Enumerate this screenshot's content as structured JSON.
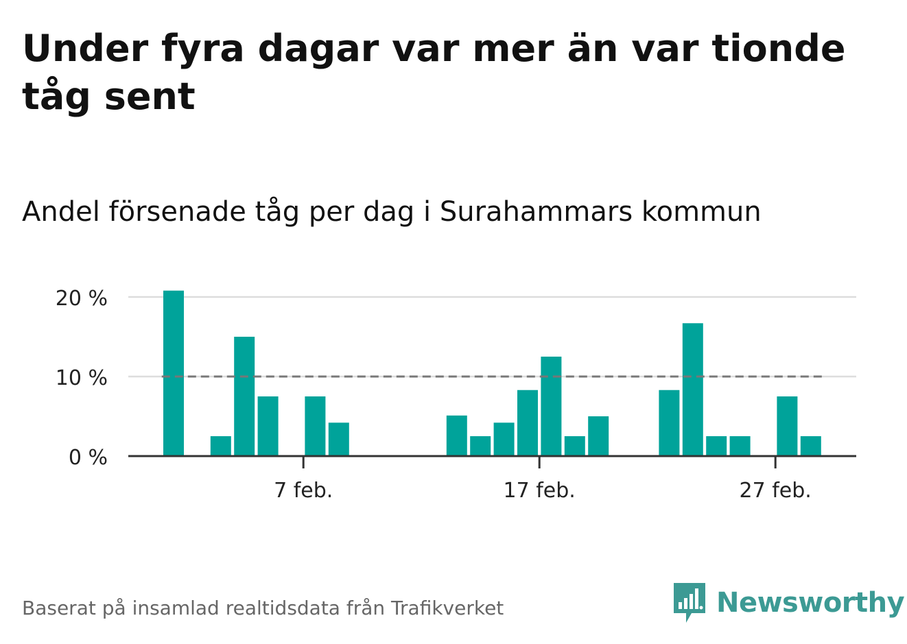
{
  "title": "Under fyra dagar var mer än var tionde tåg sent",
  "subtitle": "Andel försenade tåg per dag i Surahammars kommun",
  "footer": "Baserat på insamlad realtidsdata från Trafikverket",
  "brand": {
    "name": "Newsworthy",
    "icon": "newsworthy-logo-icon",
    "color": "#3c9a94"
  },
  "chart_data": {
    "type": "bar",
    "x_unit": "day of February",
    "x": [
      1,
      2,
      3,
      4,
      5,
      6,
      7,
      8,
      9,
      10,
      11,
      12,
      13,
      14,
      15,
      16,
      17,
      18,
      19,
      20,
      21,
      22,
      23,
      24,
      25,
      26,
      27,
      28
    ],
    "values": [
      20.8,
      0,
      2.5,
      15.0,
      7.5,
      0,
      7.5,
      4.2,
      0,
      0,
      0,
      0,
      5.1,
      2.5,
      4.2,
      8.3,
      12.5,
      2.5,
      5.0,
      0,
      0,
      8.3,
      16.7,
      2.5,
      2.5,
      0,
      7.5,
      2.5
    ],
    "y_ticks": [
      0,
      10,
      20
    ],
    "y_tick_labels": [
      "0 %",
      "10 %",
      "20 %"
    ],
    "x_ticks": [
      7,
      17,
      27
    ],
    "x_tick_labels": [
      "7 feb.",
      "17 feb.",
      "27 feb."
    ],
    "ylim": [
      0,
      20
    ],
    "reference_line": 10,
    "grid": true,
    "bar_color": "#00a39a",
    "reference_color": "#777777",
    "grid_color": "#dddddd"
  }
}
